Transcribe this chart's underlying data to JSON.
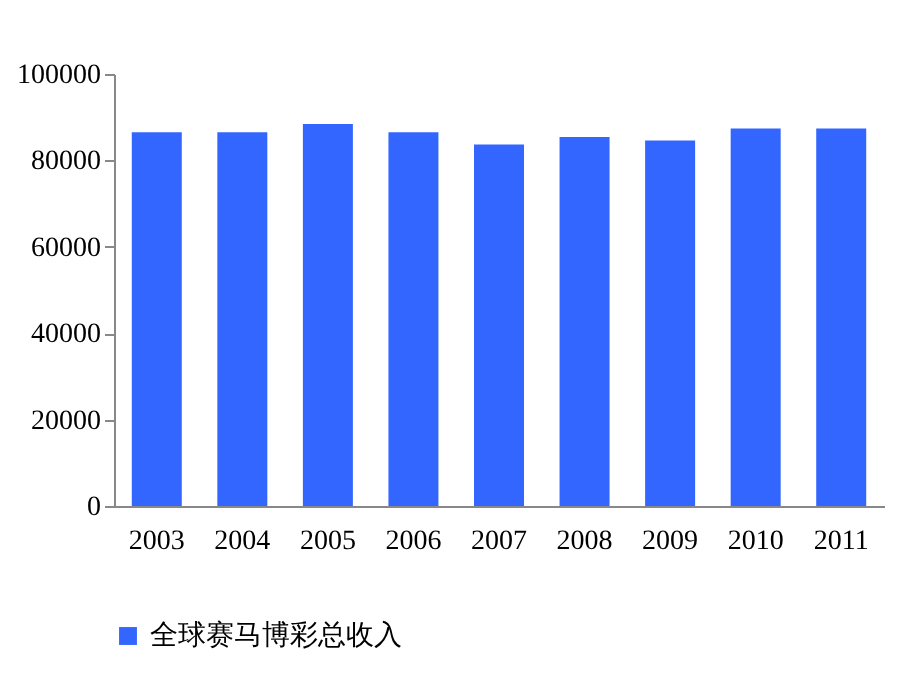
{
  "chart_data": {
    "type": "bar",
    "categories": [
      "2003",
      "2004",
      "2005",
      "2006",
      "2007",
      "2008",
      "2009",
      "2010",
      "2011"
    ],
    "series": [
      {
        "name": "全球赛马博彩总收入",
        "color": "#3366ff",
        "values": [
          86500,
          86500,
          88400,
          86500,
          83700,
          85400,
          84600,
          87400,
          87400
        ]
      }
    ],
    "ylim": [
      0,
      100000
    ],
    "yticks": [
      0,
      20000,
      40000,
      60000,
      80000,
      100000
    ],
    "grid": false,
    "legend": "bottom"
  }
}
